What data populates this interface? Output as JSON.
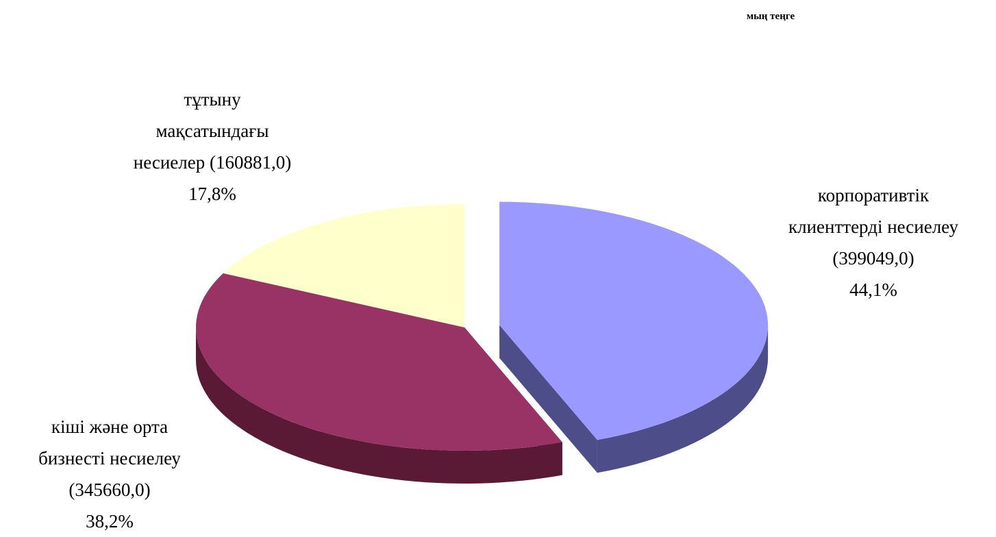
{
  "chart_data": {
    "type": "pie",
    "unit_label": "мың теңге",
    "slices": [
      {
        "value": 399049.0,
        "percent": "44,1%",
        "value_text": "(399049,0)",
        "label_lines": [
          "корпоративтік",
          "клиенттерді несиелеу"
        ],
        "color": "#9999FF",
        "side_color": "#4D4D8A",
        "exploded": true
      },
      {
        "value": 345660.0,
        "percent": "38,2%",
        "value_text": "(345660,0)",
        "label_lines": [
          "кіші және орта",
          "бизнесті несиелеу"
        ],
        "color": "#993366",
        "side_color": "#5A1A35"
      },
      {
        "value": 160881.0,
        "percent": "17,8%",
        "value_text": "(160881,0)",
        "label_lines": [
          "тұтыну",
          "мақсатындағы",
          "несиелер"
        ],
        "color": "#FFFFCC",
        "side_color": "#8A8A6E",
        "side_visible_color": "#7F8566"
      }
    ]
  }
}
